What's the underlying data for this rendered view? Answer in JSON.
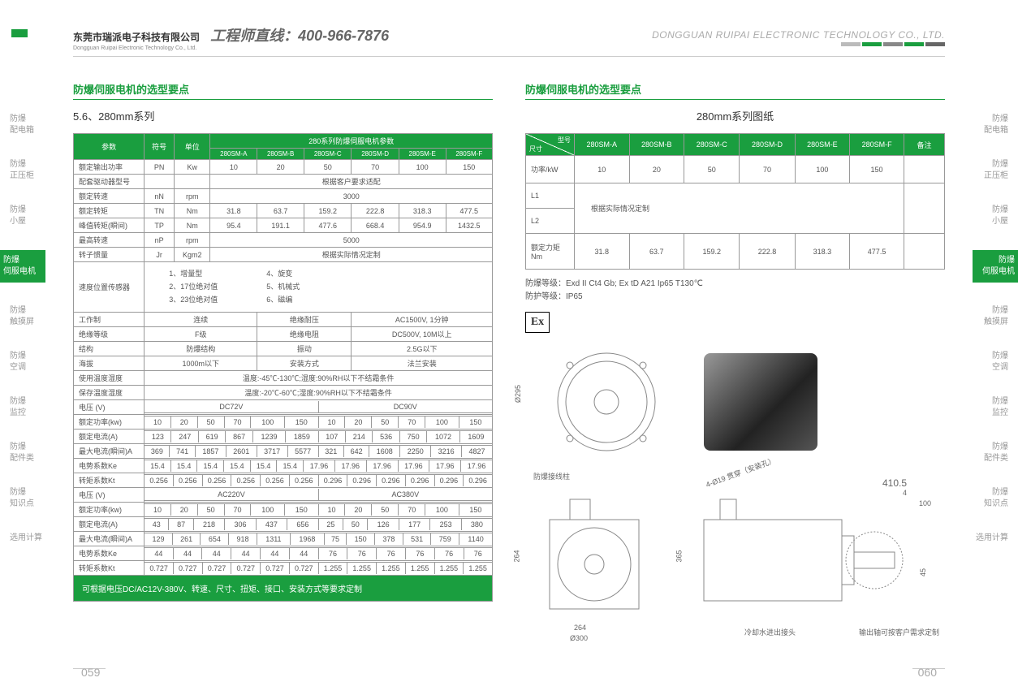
{
  "header": {
    "company_cn": "东莞市瑞派电子科技有限公司",
    "company_en": "Dongguan Ruipai Electronic Technology Co., Ltd.",
    "hotline": "工程师直线：400-966-7876",
    "company_right": "DONGGUAN RUIPAI ELECTRONIC TECHNOLOGY CO., LTD.",
    "bar_colors": [
      "#bbbbbb",
      "#1a9e3f",
      "#888888",
      "#1a9e3f",
      "#666666"
    ]
  },
  "sidebar_left": [
    {
      "l1": "防爆",
      "l2": "配电箱"
    },
    {
      "l1": "防爆",
      "l2": "正压柜"
    },
    {
      "l1": "防爆",
      "l2": "小屋"
    },
    {
      "l1": "防爆",
      "l2": "伺服电机",
      "active": true
    },
    {
      "l1": "防爆",
      "l2": "触摸屏"
    },
    {
      "l1": "防爆",
      "l2": "空调"
    },
    {
      "l1": "防爆",
      "l2": "监控"
    },
    {
      "l1": "防爆",
      "l2": "配件类"
    },
    {
      "l1": "防爆",
      "l2": "知识点"
    },
    {
      "l1": "选用计算",
      "l2": ""
    }
  ],
  "sidebar_right": [
    {
      "l1": "防爆",
      "l2": "配电箱"
    },
    {
      "l1": "防爆",
      "l2": "正压柜"
    },
    {
      "l1": "防爆",
      "l2": "小屋"
    },
    {
      "l1": "防爆",
      "l2": "伺服电机",
      "active": true
    },
    {
      "l1": "防爆",
      "l2": "触摸屏"
    },
    {
      "l1": "防爆",
      "l2": "空调"
    },
    {
      "l1": "防爆",
      "l2": "监控"
    },
    {
      "l1": "防爆",
      "l2": "配件类"
    },
    {
      "l1": "防爆",
      "l2": "知识点"
    },
    {
      "l1": "选用计算",
      "l2": ""
    }
  ],
  "left": {
    "section_title": "防爆伺服电机的选型要点",
    "subtitle": "5.6、280mm系列",
    "param_header": {
      "param": "参数",
      "symbol": "符号",
      "unit": "单位",
      "group": "280系列防爆伺服电机参数"
    },
    "models": [
      "280SM-A",
      "280SM-B",
      "280SM-C",
      "280SM-D",
      "280SM-E",
      "280SM-F"
    ],
    "rows_top": [
      {
        "label": "额定输出功率",
        "sym": "PN",
        "unit": "Kw",
        "vals": [
          "10",
          "20",
          "50",
          "70",
          "100",
          "150"
        ]
      },
      {
        "label": "配套驱动器型号",
        "sym": "",
        "unit": "",
        "span": "根据客户要求适配"
      },
      {
        "label": "额定转速",
        "sym": "nN",
        "unit": "rpm",
        "span": "3000"
      },
      {
        "label": "额定转矩",
        "sym": "TN",
        "unit": "Nm",
        "vals": [
          "31.8",
          "63.7",
          "159.2",
          "222.8",
          "318.3",
          "477.5"
        ]
      },
      {
        "label": "峰值转矩(瞬间)",
        "sym": "TP",
        "unit": "Nm",
        "vals": [
          "95.4",
          "191.1",
          "477.6",
          "668.4",
          "954.9",
          "1432.5"
        ]
      },
      {
        "label": "最高转速",
        "sym": "nP",
        "unit": "rpm",
        "span": "5000"
      },
      {
        "label": "转子惯量",
        "sym": "Jr",
        "unit": "Kgm2",
        "span": "根据实际情况定制"
      }
    ],
    "sensor_row": {
      "label": "速度位置传感器",
      "items": [
        "1、增量型",
        "2、17位绝对值",
        "3、23位绝对值",
        "4、旋变",
        "5、机械式",
        "6、磁编"
      ]
    },
    "spec_pairs": [
      {
        "l1": "工作制",
        "v1": "连续",
        "l2": "绝缘耐压",
        "v2": "AC1500V, 1分钟"
      },
      {
        "l1": "绝缘等级",
        "v1": "F级",
        "l2": "绝缘电阻",
        "v2": "DC500V, 10M以上"
      },
      {
        "l1": "结构",
        "v1": "防爆结构",
        "l2": "振动",
        "v2": "2.5G以下"
      },
      {
        "l1": "海拔",
        "v1": "1000m以下",
        "l2": "安装方式",
        "v2": "法兰安装"
      },
      {
        "l1": "使用温度湿度",
        "v1": "温度:-45℃-130℃;湿度:90%RH以下不结霜条件",
        "span": true
      },
      {
        "l1": "保存温度湿度",
        "v1": "温度:-20℃-60℃;湿度:90%RH以下不结霜条件",
        "span": true
      }
    ],
    "voltage_block1": {
      "v_label": "电压 (V)",
      "v1": "DC72V",
      "v2": "DC90V",
      "rows": [
        {
          "label": "额定功率(kw)",
          "vals": [
            "10",
            "20",
            "50",
            "70",
            "100",
            "150",
            "10",
            "20",
            "50",
            "70",
            "100",
            "150"
          ]
        },
        {
          "label": "额定电流(A)",
          "vals": [
            "123",
            "247",
            "619",
            "867",
            "1239",
            "1859",
            "107",
            "214",
            "536",
            "750",
            "1072",
            "1609"
          ]
        },
        {
          "label": "最大电流(瞬间)A",
          "vals": [
            "369",
            "741",
            "1857",
            "2601",
            "3717",
            "5577",
            "321",
            "642",
            "1608",
            "2250",
            "3216",
            "4827"
          ]
        },
        {
          "label": "电势系数Ke",
          "vals": [
            "15.4",
            "15.4",
            "15.4",
            "15.4",
            "15.4",
            "15.4",
            "17.96",
            "17.96",
            "17.96",
            "17.96",
            "17.96",
            "17.96"
          ]
        },
        {
          "label": "转矩系数Kt",
          "vals": [
            "0.256",
            "0.256",
            "0.256",
            "0.256",
            "0.256",
            "0.256",
            "0.296",
            "0.296",
            "0.296",
            "0.296",
            "0.296",
            "0.296"
          ]
        }
      ]
    },
    "voltage_block2": {
      "v_label": "电压 (V)",
      "v1": "AC220V",
      "v2": "AC380V",
      "rows": [
        {
          "label": "额定功率(kw)",
          "vals": [
            "10",
            "20",
            "50",
            "70",
            "100",
            "150",
            "10",
            "20",
            "50",
            "70",
            "100",
            "150"
          ]
        },
        {
          "label": "额定电流(A)",
          "vals": [
            "43",
            "87",
            "218",
            "306",
            "437",
            "656",
            "25",
            "50",
            "126",
            "177",
            "253",
            "380"
          ]
        },
        {
          "label": "最大电流(瞬间)A",
          "vals": [
            "129",
            "261",
            "654",
            "918",
            "1311",
            "1968",
            "75",
            "150",
            "378",
            "531",
            "759",
            "1140"
          ]
        },
        {
          "label": "电势系数Ke",
          "vals": [
            "44",
            "44",
            "44",
            "44",
            "44",
            "44",
            "76",
            "76",
            "76",
            "76",
            "76",
            "76"
          ]
        },
        {
          "label": "转矩系数Kt",
          "vals": [
            "0.727",
            "0.727",
            "0.727",
            "0.727",
            "0.727",
            "0.727",
            "1.255",
            "1.255",
            "1.255",
            "1.255",
            "1.255",
            "1.255"
          ]
        }
      ]
    },
    "footer": "可根据电压DC/AC12V-380V、转速、尺寸、扭矩、接口、安装方式等要求定制"
  },
  "right": {
    "section_title": "防爆伺服电机的选型要点",
    "subtitle": "280mm系列图纸",
    "header": {
      "model": "型号",
      "size": "尺寸",
      "remark": "备注"
    },
    "models": [
      "280SM-A",
      "280SM-B",
      "280SM-C",
      "280SM-D",
      "280SM-E",
      "280SM-F"
    ],
    "rows": [
      {
        "label": "功率/kW",
        "vals": [
          "10",
          "20",
          "50",
          "70",
          "100",
          "150"
        ],
        "remark": ""
      },
      {
        "label": "L1",
        "span": "根据实际情况定制",
        "rowspan": 2
      },
      {
        "label": "L2"
      },
      {
        "label": "额定力矩Nm",
        "vals": [
          "31.8",
          "63.7",
          "159.2",
          "222.8",
          "318.3",
          "477.5"
        ],
        "remark": ""
      }
    ],
    "protection": {
      "line1": "防爆等级：Exd II  Ct4 Gb; Ex tD A21  Ip65  T130℃",
      "line2": "防护等级：IP65"
    },
    "ex_badge": "Ex",
    "drawing_labels": {
      "terminal": "防爆接线柱",
      "mounting": "4-Ø19 贯穿（安装孔）",
      "l1": "410.5",
      "l2": "4",
      "l3": "100",
      "d1": "Ø295",
      "d2": "264",
      "d3": "Ø300",
      "d4": "365",
      "d5": "45",
      "cooling": "冷却水进出接头",
      "shaft": "输出轴可按客户需求定制",
      "h": "264"
    }
  },
  "page_left": "059",
  "page_right": "060"
}
